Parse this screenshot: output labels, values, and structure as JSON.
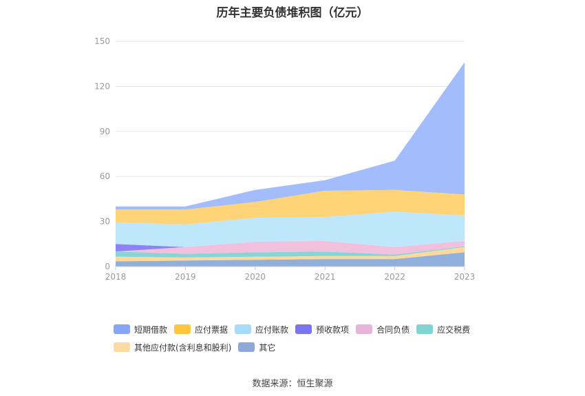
{
  "title": "历年主要负债堆积图（亿元）",
  "source": "数据来源：恒生聚源",
  "chart_data": {
    "type": "area",
    "stacked": true,
    "x": [
      "2018",
      "2019",
      "2020",
      "2021",
      "2022",
      "2023"
    ],
    "ylim": [
      0,
      150
    ],
    "yticks": [
      0,
      30,
      60,
      90,
      120,
      150
    ],
    "grid": true,
    "legend_position": "bottom",
    "series": [
      {
        "name": "其它",
        "color": "#8fb0dd",
        "values": [
          3.5,
          4,
          4.5,
          5,
          5,
          9.5
        ]
      },
      {
        "name": "其他应付款(含利息和股利)",
        "color": "#ffd89b",
        "values": [
          3,
          2,
          2,
          2,
          2,
          3.5
        ]
      },
      {
        "name": "应交税费",
        "color": "#86d6d8",
        "values": [
          3.5,
          2.5,
          3,
          3,
          1,
          0.5
        ]
      },
      {
        "name": "合同负债",
        "color": "#f0c0dd",
        "values": [
          0,
          4.5,
          7,
          7,
          5,
          3.5
        ]
      },
      {
        "name": "预收款项",
        "color": "#8c84f5",
        "values": [
          5,
          0,
          0,
          0,
          0,
          0
        ]
      },
      {
        "name": "应付账款",
        "color": "#bfe7fb",
        "values": [
          14.5,
          15,
          16,
          16,
          23.5,
          17
        ]
      },
      {
        "name": "应付票据",
        "color": "#ffd479",
        "values": [
          8.5,
          10,
          10.5,
          17.5,
          14.5,
          14
        ]
      },
      {
        "name": "短期借款",
        "color": "#a3bcfb",
        "values": [
          2,
          2,
          8,
          7,
          19.5,
          88
        ]
      }
    ],
    "legend_order": [
      "短期借款",
      "应付票据",
      "应付账款",
      "预收款项",
      "合同负债",
      "应交税费",
      "其他应付款(含利息和股利)",
      "其它"
    ],
    "legend_colors": {
      "短期借款": "#87a6f8",
      "应付票据": "#ffc53d",
      "应付账款": "#a6dcfa",
      "预收款项": "#7b74f0",
      "合同负债": "#e8b4d9",
      "应交税费": "#7fd3d0",
      "其他应付款(含利息和股利)": "#ffdba4",
      "其它": "#8ea9d8"
    }
  }
}
